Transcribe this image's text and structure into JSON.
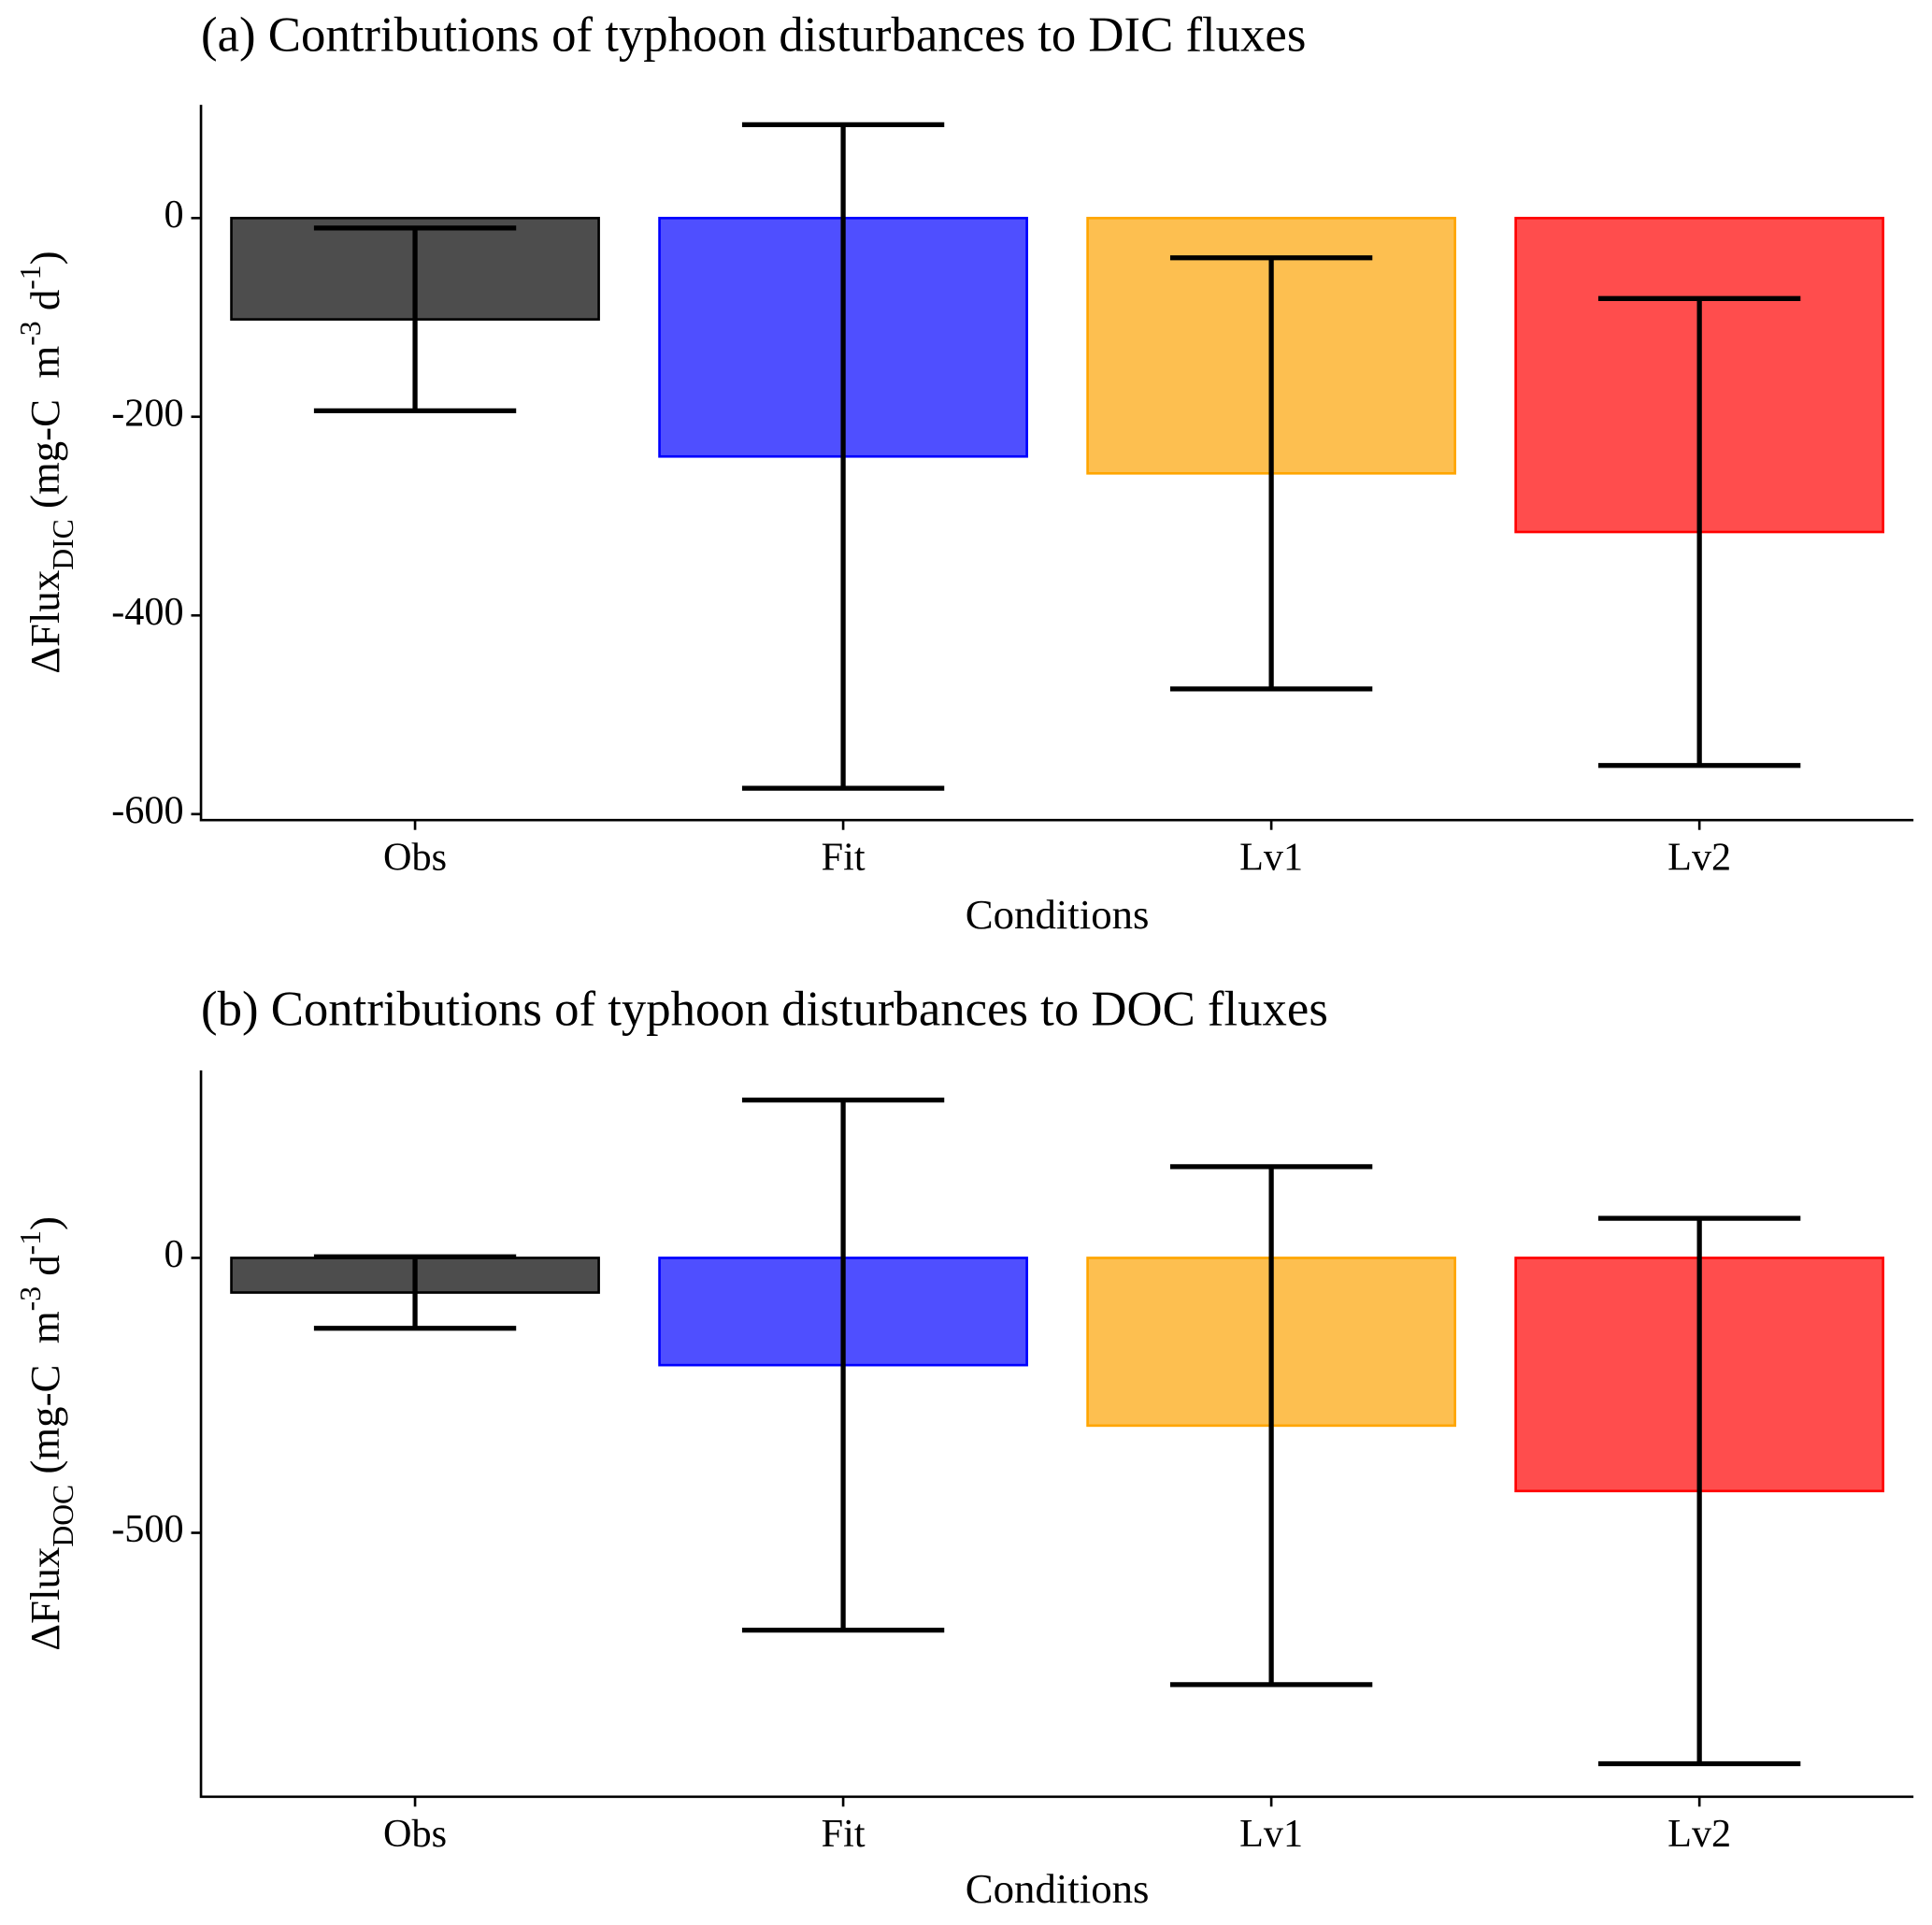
{
  "chart_data": [
    {
      "type": "bar",
      "title": "(a) Contributions of typhoon disturbances to DIC fluxes",
      "xlabel": "Conditions",
      "ylabel_parts": [
        {
          "text": "ΔFlux"
        },
        {
          "text": "DIC",
          "shift": "sub"
        },
        {
          "text": " (mg-C  m"
        },
        {
          "text": "-3",
          "shift": "super"
        },
        {
          "text": " d"
        },
        {
          "text": "-1",
          "shift": "super"
        },
        {
          "text": ")"
        }
      ],
      "categories": [
        "Obs",
        "Fit",
        "Lv1",
        "Lv2"
      ],
      "values": [
        -102,
        -240,
        -257,
        -316
      ],
      "errors": [
        92,
        334,
        217,
        235
      ],
      "colors": [
        "#4d4d4d",
        "#4f4fff",
        "#fdbf50",
        "#ff4d4d"
      ],
      "edgecolors": [
        "#000000",
        "#0000ff",
        "#ffa500",
        "#ff0000"
      ],
      "ylim": [
        -606,
        114
      ],
      "yticks": [
        -600,
        -400,
        -200,
        0
      ]
    },
    {
      "type": "bar",
      "title": "(b) Contributions of typhoon disturbances to DOC fluxes",
      "xlabel": "Conditions",
      "ylabel_parts": [
        {
          "text": "ΔFlux"
        },
        {
          "text": "DOC",
          "shift": "sub"
        },
        {
          "text": " (mg-C  m"
        },
        {
          "text": "-3",
          "shift": "super"
        },
        {
          "text": " d"
        },
        {
          "text": "-1",
          "shift": "super"
        },
        {
          "text": ")"
        }
      ],
      "categories": [
        "Obs",
        "Fit",
        "Lv1",
        "Lv2"
      ],
      "values": [
        -63,
        -195,
        -305,
        -424
      ],
      "errors": [
        65,
        482,
        471,
        496
      ],
      "colors": [
        "#4d4d4d",
        "#4f4fff",
        "#fdbf50",
        "#ff4d4d"
      ],
      "edgecolors": [
        "#000000",
        "#0000ff",
        "#ffa500",
        "#ff0000"
      ],
      "ylim": [
        -980,
        341
      ],
      "yticks": [
        -500,
        0
      ]
    }
  ]
}
